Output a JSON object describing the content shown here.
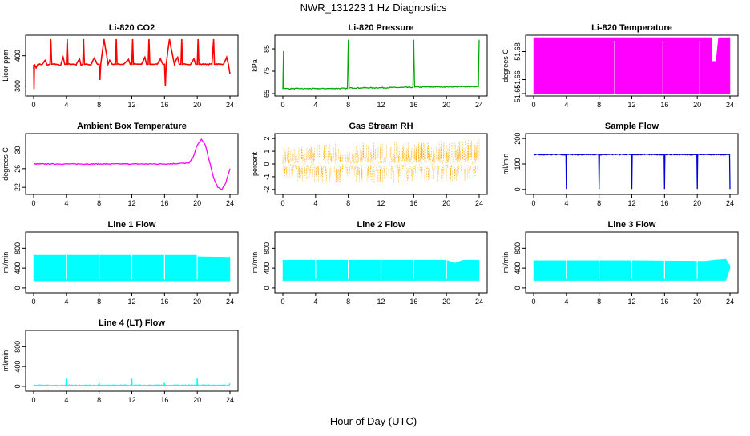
{
  "figure": {
    "title": "NWR_131223  1 Hz Diagnostics",
    "xlabel": "Hour of Day (UTC)"
  },
  "chart_data": [
    {
      "type": "line",
      "title": "Li-820 CO2",
      "ylabel": "Licor ppm",
      "color": "#ff0000",
      "xlim": [
        0,
        24
      ],
      "xticks": [
        0,
        4,
        8,
        12,
        16,
        20,
        24
      ],
      "ylim": [
        275,
        460
      ],
      "yticks": [
        300,
        400
      ],
      "x": [
        0,
        0.05,
        0.1,
        0.3,
        0.5,
        0.8,
        1.0,
        1.4,
        1.7,
        2.0,
        2.1,
        2.2,
        2.8,
        3.3,
        3.6,
        3.8,
        4.0,
        4.1,
        4.2,
        4.6,
        5.2,
        5.6,
        5.8,
        6.0,
        6.1,
        6.2,
        6.6,
        7.0,
        7.4,
        7.8,
        8.0,
        8.1,
        8.2,
        8.6,
        9.1,
        9.3,
        9.6,
        10.0,
        10.1,
        10.2,
        10.5,
        11.0,
        11.6,
        11.8,
        12.0,
        12.1,
        12.2,
        12.7,
        13.2,
        13.6,
        13.8,
        14.0,
        14.1,
        14.2,
        14.6,
        15.1,
        15.5,
        15.8,
        16.0,
        16.1,
        16.2,
        16.6,
        17.2,
        17.6,
        17.8,
        18.0,
        18.1,
        18.2,
        18.7,
        19.2,
        19.6,
        19.8,
        20.0,
        20.1,
        20.2,
        20.6,
        21.2,
        21.8,
        22.0,
        22.1,
        22.2,
        22.8,
        23.2,
        23.6,
        23.8,
        24.0
      ],
      "y": [
        370,
        290,
        372,
        360,
        371,
        372,
        370,
        385,
        368,
        372,
        455,
        372,
        372,
        368,
        395,
        372,
        372,
        455,
        372,
        372,
        370,
        390,
        368,
        372,
        455,
        372,
        372,
        370,
        392,
        372,
        372,
        320,
        372,
        455,
        372,
        385,
        372,
        372,
        455,
        372,
        372,
        372,
        388,
        372,
        372,
        455,
        372,
        372,
        372,
        395,
        372,
        372,
        455,
        372,
        372,
        372,
        390,
        372,
        372,
        300,
        372,
        455,
        372,
        395,
        372,
        372,
        455,
        372,
        372,
        372,
        390,
        372,
        372,
        455,
        372,
        372,
        372,
        372,
        455,
        372,
        372,
        372,
        372,
        395,
        372,
        340
      ]
    },
    {
      "type": "line",
      "title": "Li-820 Pressure",
      "ylabel": "kPa",
      "color": "#00aa00",
      "xlim": [
        0,
        24
      ],
      "xticks": [
        0,
        4,
        8,
        12,
        16,
        20,
        24
      ],
      "ylim": [
        65,
        90
      ],
      "yticks": [
        65,
        75,
        85
      ],
      "x": [
        0,
        0.08,
        0.12,
        0.3,
        4.0,
        7.9,
        8.0,
        8.1,
        12.0,
        15.9,
        16.0,
        16.1,
        20.0,
        23.9,
        24.0
      ],
      "y": [
        67,
        84,
        67.4,
        67.2,
        67.2,
        67.3,
        89,
        67.5,
        67.6,
        67.8,
        89,
        67.9,
        68.0,
        68.1,
        89
      ]
    },
    {
      "type": "area",
      "title": "Li-820 Temperature",
      "ylabel": "degrees C",
      "color": "#ff00ff",
      "xlim": [
        0,
        24
      ],
      "xticks": [
        0,
        4,
        8,
        12,
        16,
        20,
        24
      ],
      "ylim": [
        51.65,
        51.69
      ],
      "yticks": [
        51.65,
        51.66,
        51.68
      ],
      "x": [
        0,
        21.8,
        21.8,
        22.3,
        22.6,
        24
      ],
      "y": [
        51.69,
        51.69,
        51.673,
        51.673,
        51.69,
        51.69
      ]
    },
    {
      "type": "line",
      "title": "Ambient Box Temperature",
      "ylabel": "degrees C",
      "color": "#ff00ff",
      "xlim": [
        0,
        24
      ],
      "xticks": [
        0,
        4,
        8,
        12,
        16,
        20,
        24
      ],
      "ylim": [
        21,
        33
      ],
      "yticks": [
        22,
        26,
        30
      ],
      "x": [
        0,
        4,
        8,
        12,
        16,
        19.0,
        19.5,
        20.0,
        20.5,
        21.0,
        21.5,
        22.0,
        22.5,
        23.0,
        23.5,
        24.0
      ],
      "y": [
        27.0,
        27.0,
        27.0,
        27.0,
        27.0,
        27.2,
        28.5,
        31.0,
        32.3,
        31.0,
        27.5,
        24.0,
        22.0,
        21.5,
        23.0,
        26.0
      ]
    },
    {
      "type": "scatter",
      "title": "Gas Stream RH",
      "ylabel": "percent",
      "color": "#ffaa00",
      "xlim": [
        0,
        24
      ],
      "xticks": [
        0,
        4,
        8,
        12,
        16,
        20,
        24
      ],
      "ylim": [
        -2.2,
        2.2
      ],
      "yticks": [
        -2,
        -1,
        0,
        1,
        2
      ],
      "band_x": [
        0,
        4,
        8,
        12,
        16,
        20,
        24
      ],
      "band_min": [
        -1.3,
        -1.5,
        -1.5,
        -1.5,
        -1.5,
        -1.4,
        -1.3
      ],
      "band_max": [
        1.4,
        1.6,
        1.7,
        1.7,
        1.8,
        1.9,
        2.0
      ]
    },
    {
      "type": "line",
      "title": "Sample Flow",
      "ylabel": "ml/min",
      "color": "#0000dd",
      "xlim": [
        0,
        24
      ],
      "xticks": [
        0,
        4,
        8,
        12,
        16,
        20,
        24
      ],
      "ylim": [
        -10,
        210
      ],
      "yticks": [
        0,
        100,
        200
      ],
      "x": [
        0,
        3.95,
        4.0,
        4.05,
        7.95,
        8.0,
        8.05,
        11.95,
        12.0,
        12.05,
        15.95,
        16.0,
        16.05,
        19.95,
        20.0,
        20.05,
        23.95,
        24.0
      ],
      "y": [
        137,
        137,
        2,
        137,
        137,
        2,
        137,
        137,
        2,
        137,
        137,
        2,
        137,
        137,
        2,
        137,
        137,
        2
      ]
    },
    {
      "type": "area",
      "title": "Line 1 Flow",
      "ylabel": "ml/min",
      "color": "#00ffff",
      "xlim": [
        0,
        24
      ],
      "xticks": [
        0,
        4,
        8,
        12,
        16,
        20,
        24
      ],
      "ylim": [
        -50,
        1080
      ],
      "yticks": [
        0,
        400,
        800
      ],
      "band_x": [
        0,
        12,
        19.9,
        20.0,
        24
      ],
      "band_min": [
        140,
        140,
        140,
        140,
        140
      ],
      "band_max": [
        660,
        660,
        660,
        630,
        620
      ]
    },
    {
      "type": "area",
      "title": "Line 2 Flow",
      "ylabel": "ml/min",
      "color": "#00ffff",
      "xlim": [
        0,
        24
      ],
      "xticks": [
        0,
        4,
        8,
        12,
        16,
        20,
        24
      ],
      "ylim": [
        -50,
        1080
      ],
      "yticks": [
        0,
        400,
        800
      ],
      "band_x": [
        0,
        12,
        20,
        21,
        22,
        24
      ],
      "band_min": [
        150,
        150,
        150,
        150,
        150,
        150
      ],
      "band_max": [
        560,
        560,
        560,
        500,
        560,
        560
      ]
    },
    {
      "type": "area",
      "title": "Line 3 Flow",
      "ylabel": "ml/min",
      "color": "#00ffff",
      "xlim": [
        0,
        24
      ],
      "xticks": [
        0,
        4,
        8,
        12,
        16,
        20,
        24
      ],
      "ylim": [
        -50,
        1080
      ],
      "yticks": [
        0,
        400,
        800
      ],
      "band_x": [
        0,
        12,
        21,
        22,
        23.5,
        24
      ],
      "band_min": [
        150,
        150,
        150,
        150,
        150,
        400
      ],
      "band_max": [
        550,
        550,
        540,
        560,
        580,
        450
      ]
    },
    {
      "type": "line",
      "title": "Line 4 (LT) Flow",
      "ylabel": "ml/min",
      "color": "#00ffff",
      "xlim": [
        0,
        24
      ],
      "xticks": [
        0,
        4,
        8,
        12,
        16,
        20,
        24
      ],
      "ylim": [
        -50,
        1080
      ],
      "yticks": [
        0,
        400,
        800
      ],
      "x": [
        0,
        3.95,
        4.0,
        4.05,
        7.95,
        8.0,
        8.05,
        11.95,
        12.0,
        12.05,
        15.95,
        16.0,
        16.05,
        19.95,
        20.0,
        20.05,
        23.9,
        24.0
      ],
      "y": [
        20,
        20,
        160,
        20,
        20,
        70,
        20,
        20,
        160,
        20,
        20,
        70,
        20,
        20,
        160,
        20,
        20,
        60
      ]
    }
  ]
}
